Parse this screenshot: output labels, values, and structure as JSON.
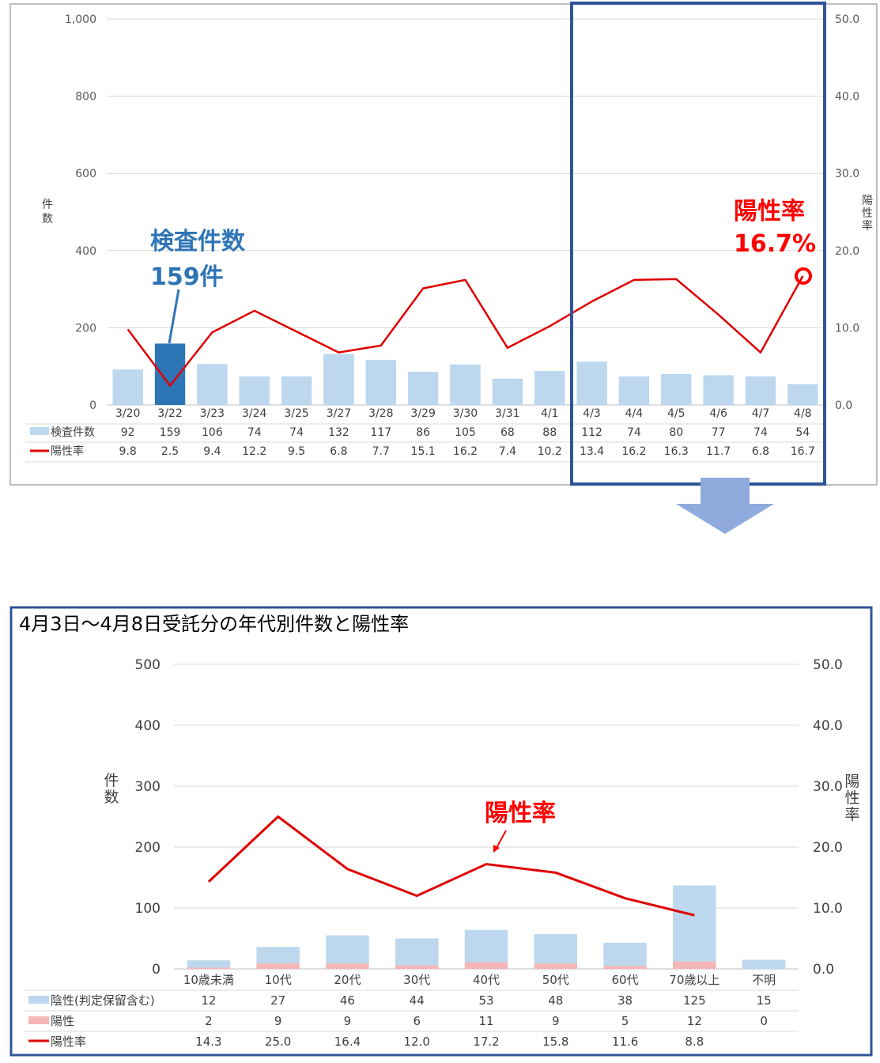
{
  "colors": {
    "bar": "#BDD7EE",
    "bar_highlight": "#2E75B6",
    "positive_bar": "#F4B6B6",
    "line": "#E00000",
    "frame": "#2F5597",
    "arrow": "#8FAADC",
    "callout_blue": "#2E75B6",
    "callout_red": "#FF0000",
    "grid": "#D9D9D9"
  },
  "chart_data": [
    {
      "type": "bar+line",
      "title": "",
      "categories": [
        "3/20",
        "3/22",
        "3/23",
        "3/24",
        "3/25",
        "3/27",
        "3/28",
        "3/29",
        "3/30",
        "3/31",
        "4/1",
        "4/3",
        "4/4",
        "4/5",
        "4/6",
        "4/7",
        "4/8"
      ],
      "series": [
        {
          "name": "検査件数",
          "type": "bar",
          "axis": "left",
          "values": [
            92,
            159,
            106,
            74,
            74,
            132,
            117,
            86,
            105,
            68,
            88,
            112,
            74,
            80,
            77,
            74,
            54
          ]
        },
        {
          "name": "陽性率",
          "type": "line",
          "axis": "right",
          "values": [
            9.8,
            2.5,
            9.4,
            12.2,
            9.5,
            6.8,
            7.7,
            15.1,
            16.2,
            7.4,
            10.2,
            13.4,
            16.2,
            16.3,
            11.7,
            6.8,
            16.7
          ]
        }
      ],
      "table_values": {
        "counts": [
          "92",
          "159",
          "106",
          "74",
          "74",
          "132",
          "117",
          "86",
          "105",
          "68",
          "88",
          "112",
          "74",
          "80",
          "77",
          "74",
          "54"
        ],
        "rates": [
          "9.8",
          "2.5",
          "9.4",
          "12.2",
          "9.5",
          "6.8",
          "7.7",
          "15.1",
          "16.2",
          "7.4",
          "10.2",
          "13.4",
          "16.2",
          "16.3",
          "11.7",
          "6.8",
          "16.7"
        ]
      },
      "ylabel_left": "件数",
      "ylabel_right": "陽性率",
      "ylim_left": [
        0,
        1000
      ],
      "ylim_right": [
        0,
        50
      ],
      "yticks_left": [
        "0",
        "200",
        "400",
        "600",
        "800",
        "1,000"
      ],
      "yticks_right": [
        "0.0",
        "10.0",
        "20.0",
        "30.0",
        "40.0",
        "50.0"
      ],
      "highlight_category": "3/22",
      "highlight_range": [
        "4/3",
        "4/8"
      ],
      "annotations": {
        "count_title": "検査件数",
        "count_value": "159件",
        "rate_title": "陽性率",
        "rate_value": "16.7%"
      },
      "grid": true,
      "legend": "data-table"
    },
    {
      "type": "stacked-bar+line",
      "title": "4月3日～4月8日受託分の年代別件数と陽性率",
      "categories": [
        "10歳未満",
        "10代",
        "20代",
        "30代",
        "40代",
        "50代",
        "60代",
        "70歳以上",
        "不明"
      ],
      "series": [
        {
          "name": "陰性(判定保留含む)",
          "type": "bar",
          "axis": "left",
          "values": [
            12,
            27,
            46,
            44,
            53,
            48,
            38,
            125,
            15
          ]
        },
        {
          "name": "陽性",
          "type": "bar",
          "axis": "left",
          "values": [
            2,
            9,
            9,
            6,
            11,
            9,
            5,
            12,
            0
          ]
        },
        {
          "name": "陽性率",
          "type": "line",
          "axis": "right",
          "values": [
            14.3,
            25.0,
            16.4,
            12.0,
            17.2,
            15.8,
            11.6,
            8.8,
            null
          ]
        }
      ],
      "table_values": {
        "negative": [
          "12",
          "27",
          "46",
          "44",
          "53",
          "48",
          "38",
          "125",
          "15"
        ],
        "positive": [
          "2",
          "9",
          "9",
          "6",
          "11",
          "9",
          "5",
          "12",
          "0"
        ],
        "rates": [
          "14.3",
          "25.0",
          "16.4",
          "12.0",
          "17.2",
          "15.8",
          "11.6",
          "8.8",
          ""
        ]
      },
      "ylabel_left": "件数",
      "ylabel_right": "陽性率",
      "ylim_left": [
        0,
        500
      ],
      "ylim_right": [
        0,
        50
      ],
      "yticks_left": [
        "0",
        "100",
        "200",
        "300",
        "400",
        "500"
      ],
      "yticks_right": [
        "0.0",
        "10.0",
        "20.0",
        "30.0",
        "40.0",
        "50.0"
      ],
      "annotations": {
        "rate_title": "陽性率"
      },
      "grid": true,
      "legend": "data-table"
    }
  ]
}
